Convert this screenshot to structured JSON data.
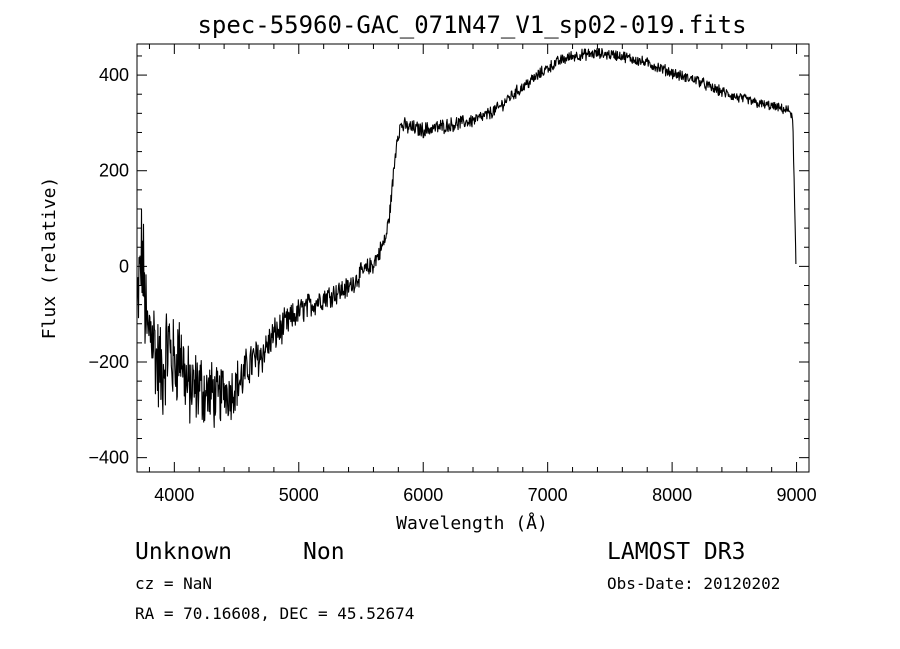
{
  "chart_data": {
    "type": "line",
    "title": "spec-55960-GAC_071N47_V1_sp02-019.fits",
    "xlabel": "Wavelength (Å)",
    "ylabel": "Flux (relative)",
    "xlim": [
      3700,
      9100
    ],
    "ylim": [
      -430,
      465
    ],
    "x_ticks": [
      4000,
      5000,
      6000,
      7000,
      8000,
      9000
    ],
    "y_ticks": [
      -400,
      -200,
      0,
      200,
      400
    ],
    "x_minor_step": 200,
    "y_minor_step": 40,
    "grid": false,
    "series": [
      {
        "color": "#000000",
        "anchors": [
          [
            3700,
            -100
          ],
          [
            3740,
            30
          ],
          [
            3780,
            -150
          ],
          [
            3820,
            -120
          ],
          [
            3860,
            -200
          ],
          [
            3900,
            -230
          ],
          [
            3950,
            -160
          ],
          [
            4000,
            -210
          ],
          [
            4050,
            -170
          ],
          [
            4100,
            -250
          ],
          [
            4150,
            -260
          ],
          [
            4200,
            -250
          ],
          [
            4250,
            -265
          ],
          [
            4300,
            -265
          ],
          [
            4350,
            -280
          ],
          [
            4400,
            -255
          ],
          [
            4450,
            -265
          ],
          [
            4500,
            -245
          ],
          [
            4550,
            -235
          ],
          [
            4600,
            -205
          ],
          [
            4650,
            -195
          ],
          [
            4700,
            -185
          ],
          [
            4750,
            -165
          ],
          [
            4800,
            -145
          ],
          [
            4900,
            -120
          ],
          [
            5000,
            -95
          ],
          [
            5100,
            -80
          ],
          [
            5200,
            -65
          ],
          [
            5300,
            -55
          ],
          [
            5400,
            -45
          ],
          [
            5500,
            -15
          ],
          [
            5600,
            5
          ],
          [
            5650,
            30
          ],
          [
            5700,
            60
          ],
          [
            5730,
            110
          ],
          [
            5760,
            190
          ],
          [
            5790,
            270
          ],
          [
            5820,
            295
          ],
          [
            5900,
            290
          ],
          [
            6000,
            285
          ],
          [
            6100,
            290
          ],
          [
            6200,
            295
          ],
          [
            6300,
            300
          ],
          [
            6400,
            305
          ],
          [
            6500,
            315
          ],
          [
            6600,
            330
          ],
          [
            6700,
            355
          ],
          [
            6800,
            375
          ],
          [
            6900,
            395
          ],
          [
            7000,
            415
          ],
          [
            7100,
            430
          ],
          [
            7200,
            440
          ],
          [
            7300,
            443
          ],
          [
            7400,
            445
          ],
          [
            7500,
            443
          ],
          [
            7600,
            440
          ],
          [
            7700,
            432
          ],
          [
            7800,
            425
          ],
          [
            7900,
            415
          ],
          [
            8000,
            405
          ],
          [
            8100,
            395
          ],
          [
            8200,
            390
          ],
          [
            8300,
            375
          ],
          [
            8400,
            365
          ],
          [
            8500,
            355
          ],
          [
            8600,
            348
          ],
          [
            8700,
            340
          ],
          [
            8800,
            335
          ],
          [
            8900,
            328
          ],
          [
            8950,
            325
          ],
          [
            8970,
            300
          ],
          [
            8980,
            180
          ],
          [
            8990,
            60
          ],
          [
            8995,
            5
          ]
        ],
        "noise": [
          [
            3700,
            110
          ],
          [
            4000,
            85
          ],
          [
            4500,
            45
          ],
          [
            5000,
            25
          ],
          [
            5800,
            15
          ],
          [
            6500,
            12
          ],
          [
            7500,
            10
          ],
          [
            8500,
            10
          ],
          [
            9000,
            8
          ]
        ]
      }
    ]
  },
  "info": {
    "class": "Unknown",
    "subclass": "Non",
    "survey": "LAMOST DR3",
    "cz": "cz = NaN",
    "obs_date": "Obs-Date: 20120202",
    "coords": "RA =  70.16608, DEC =  45.52674"
  }
}
